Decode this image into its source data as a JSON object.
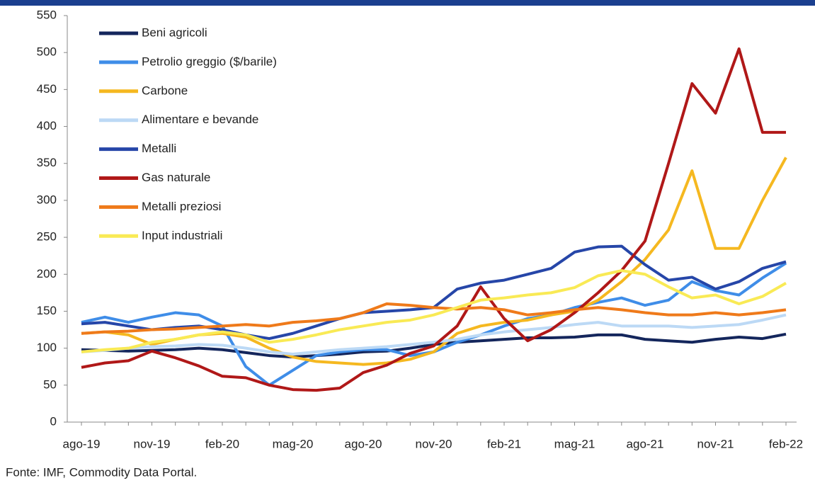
{
  "chart_data": {
    "type": "line",
    "categories": [
      "ago-19",
      null,
      null,
      "nov-19",
      null,
      null,
      "feb-20",
      null,
      null,
      "mag-20",
      null,
      null,
      "ago-20",
      null,
      null,
      "nov-20",
      null,
      null,
      "feb-21",
      null,
      null,
      "mag-21",
      null,
      null,
      "ago-21",
      null,
      null,
      "nov-21",
      null,
      null,
      "feb-22"
    ],
    "series": [
      {
        "name": "Beni agricoli",
        "color": "#14265c",
        "values": [
          98,
          97,
          96,
          97,
          98,
          100,
          98,
          94,
          90,
          88,
          90,
          92,
          95,
          96,
          100,
          105,
          108,
          110,
          112,
          114,
          114,
          115,
          118,
          118,
          112,
          110,
          108,
          112,
          115,
          113,
          119
        ]
      },
      {
        "name": "Petrolio greggio ($/barile)",
        "color": "#3f8de8",
        "values": [
          135,
          142,
          135,
          142,
          148,
          145,
          130,
          75,
          50,
          70,
          90,
          95,
          98,
          98,
          90,
          95,
          108,
          118,
          130,
          140,
          145,
          155,
          162,
          168,
          158,
          165,
          190,
          178,
          172,
          195,
          215
        ]
      },
      {
        "name": "Carbone",
        "color": "#f5b820",
        "values": [
          120,
          122,
          118,
          105,
          112,
          118,
          120,
          115,
          100,
          88,
          82,
          80,
          78,
          80,
          85,
          95,
          120,
          130,
          135,
          138,
          145,
          150,
          165,
          190,
          220,
          260,
          340,
          235,
          235,
          300,
          358
        ]
      },
      {
        "name": "Alimentare e bevande",
        "color": "#bcd9f5",
        "values": [
          95,
          97,
          100,
          102,
          103,
          105,
          104,
          100,
          95,
          92,
          95,
          98,
          100,
          102,
          105,
          108,
          112,
          118,
          122,
          125,
          128,
          132,
          135,
          130,
          130,
          130,
          128,
          130,
          132,
          138,
          145
        ]
      },
      {
        "name": "Metalli",
        "color": "#2646a8",
        "values": [
          133,
          135,
          130,
          125,
          128,
          130,
          125,
          118,
          113,
          120,
          130,
          140,
          148,
          150,
          152,
          155,
          180,
          188,
          192,
          200,
          208,
          230,
          237,
          238,
          213,
          192,
          196,
          180,
          190,
          208,
          217
        ]
      },
      {
        "name": "Gas naturale",
        "color": "#b01818",
        "values": [
          74,
          80,
          83,
          96,
          87,
          76,
          62,
          60,
          50,
          44,
          43,
          46,
          67,
          77,
          93,
          103,
          130,
          183,
          140,
          110,
          125,
          148,
          175,
          205,
          245,
          350,
          458,
          418,
          505,
          392,
          392
        ]
      },
      {
        "name": "Metalli preziosi",
        "color": "#ef7a1a",
        "values": [
          120,
          122,
          123,
          125,
          126,
          128,
          130,
          132,
          130,
          135,
          137,
          140,
          148,
          160,
          158,
          155,
          153,
          155,
          152,
          145,
          148,
          152,
          155,
          152,
          148,
          145,
          145,
          148,
          145,
          148,
          152
        ]
      },
      {
        "name": "Input industriali",
        "color": "#f9ea55",
        "values": [
          95,
          98,
          100,
          108,
          112,
          118,
          122,
          118,
          108,
          112,
          118,
          125,
          130,
          135,
          138,
          145,
          155,
          165,
          168,
          172,
          175,
          182,
          198,
          205,
          200,
          183,
          168,
          172,
          160,
          170,
          188
        ]
      }
    ],
    "ylim": [
      0,
      550
    ],
    "yticks": [
      0,
      50,
      100,
      150,
      200,
      250,
      300,
      350,
      400,
      450,
      500,
      550
    ],
    "legend": "top-left",
    "source": "Fonte: IMF, Commodity Data Portal."
  }
}
